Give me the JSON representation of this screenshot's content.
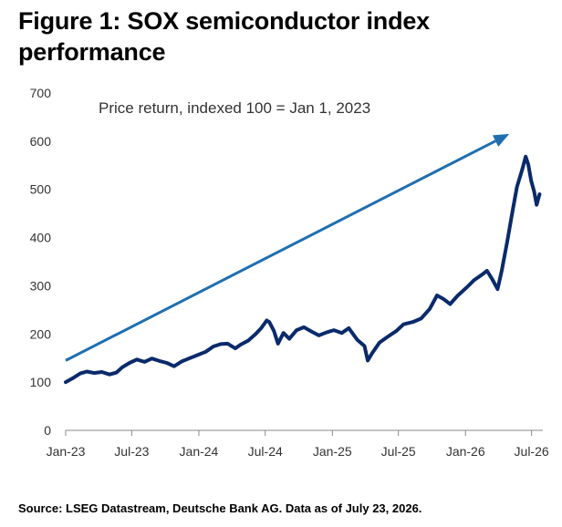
{
  "title": "Figure 1: SOX semiconductor index performance",
  "source": "Source: LSEG Datastream, Deutsche Bank AG. Data as of July 23, 2026.",
  "colors": {
    "series": "#0a2a6b",
    "arrow": "#1f6fb0",
    "axis": "#888888",
    "text": "#333333"
  },
  "chart_data": {
    "type": "line",
    "annotation": "Price return, indexed 100 = Jan 1, 2023",
    "ylim": [
      0,
      700
    ],
    "y_ticks": [
      0,
      100,
      200,
      300,
      400,
      500,
      600,
      700
    ],
    "x_ticks": [
      "Jan-23",
      "Jul-23",
      "Jan-24",
      "Jul-24",
      "Jan-25",
      "Jul-25",
      "Jan-26",
      "Jul-26"
    ],
    "x_range": [
      "Jan-23",
      "Aug-26"
    ],
    "grid": false,
    "arrow": {
      "from": {
        "x": "Jan-23",
        "y": 145
      },
      "to": {
        "x": "May-26",
        "y": 615
      }
    },
    "series": [
      {
        "values": [
          [
            "2023-01-01",
            100
          ],
          [
            "2023-01-20",
            108
          ],
          [
            "2023-02-10",
            118
          ],
          [
            "2023-02-28",
            122
          ],
          [
            "2023-03-20",
            119
          ],
          [
            "2023-04-10",
            121
          ],
          [
            "2023-05-01",
            116
          ],
          [
            "2023-05-20",
            120
          ],
          [
            "2023-06-05",
            131
          ],
          [
            "2023-06-25",
            140
          ],
          [
            "2023-07-15",
            147
          ],
          [
            "2023-08-05",
            142
          ],
          [
            "2023-08-25",
            149
          ],
          [
            "2023-09-15",
            144
          ],
          [
            "2023-10-05",
            140
          ],
          [
            "2023-10-25",
            133
          ],
          [
            "2023-11-15",
            143
          ],
          [
            "2023-12-05",
            149
          ],
          [
            "2023-12-28",
            156
          ],
          [
            "2024-01-20",
            163
          ],
          [
            "2024-02-10",
            174
          ],
          [
            "2024-03-01",
            179
          ],
          [
            "2024-03-20",
            180
          ],
          [
            "2024-04-10",
            170
          ],
          [
            "2024-04-25",
            178
          ],
          [
            "2024-05-15",
            186
          ],
          [
            "2024-06-05",
            200
          ],
          [
            "2024-06-20",
            212
          ],
          [
            "2024-07-05",
            228
          ],
          [
            "2024-07-12",
            225
          ],
          [
            "2024-07-25",
            206
          ],
          [
            "2024-08-05",
            180
          ],
          [
            "2024-08-20",
            202
          ],
          [
            "2024-09-05",
            190
          ],
          [
            "2024-09-25",
            208
          ],
          [
            "2024-10-15",
            214
          ],
          [
            "2024-11-05",
            205
          ],
          [
            "2024-11-25",
            197
          ],
          [
            "2024-12-15",
            203
          ],
          [
            "2025-01-05",
            208
          ],
          [
            "2025-01-27",
            202
          ],
          [
            "2025-02-15",
            212
          ],
          [
            "2025-03-10",
            188
          ],
          [
            "2025-03-30",
            175
          ],
          [
            "2025-04-08",
            145
          ],
          [
            "2025-04-20",
            160
          ],
          [
            "2025-05-10",
            182
          ],
          [
            "2025-06-01",
            194
          ],
          [
            "2025-06-25",
            206
          ],
          [
            "2025-07-15",
            220
          ],
          [
            "2025-08-10",
            225
          ],
          [
            "2025-09-01",
            232
          ],
          [
            "2025-09-25",
            252
          ],
          [
            "2025-10-15",
            280
          ],
          [
            "2025-11-01",
            273
          ],
          [
            "2025-11-20",
            262
          ],
          [
            "2025-12-10",
            279
          ],
          [
            "2026-01-05",
            297
          ],
          [
            "2026-01-25",
            312
          ],
          [
            "2026-02-15",
            323
          ],
          [
            "2026-03-01",
            331
          ],
          [
            "2026-03-15",
            314
          ],
          [
            "2026-03-30",
            293
          ],
          [
            "2026-04-10",
            330
          ],
          [
            "2026-04-25",
            390
          ],
          [
            "2026-05-10",
            455
          ],
          [
            "2026-05-22",
            505
          ],
          [
            "2026-06-05",
            540
          ],
          [
            "2026-06-15",
            568
          ],
          [
            "2026-06-22",
            552
          ],
          [
            "2026-06-30",
            518
          ],
          [
            "2026-07-08",
            496
          ],
          [
            "2026-07-15",
            468
          ],
          [
            "2026-07-23",
            490
          ]
        ]
      }
    ]
  }
}
